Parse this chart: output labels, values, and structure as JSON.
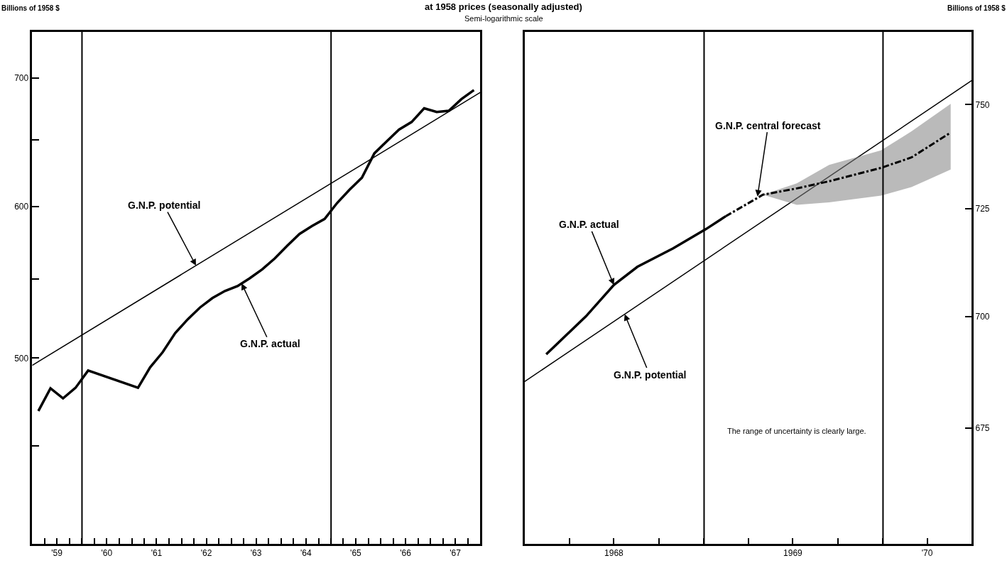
{
  "chart_data": [
    {
      "type": "line",
      "title": "at 1958 prices (seasonally adjusted)",
      "subtitle": "Semi-logarithmic scale",
      "ylabel": "Billions of 1958 $",
      "log": "y",
      "grid": false,
      "xlim": [
        "1959-01-01",
        "1968-01-01"
      ],
      "xticks": [
        {
          "value": "1959-04-01",
          "label": null
        },
        {
          "value": "1959-07-01",
          "label": "'59"
        },
        {
          "value": "1959-10-01",
          "label": null
        },
        {
          "value": "1960-01-01",
          "label": null
        },
        {
          "value": "1960-04-01",
          "label": null
        },
        {
          "value": "1960-07-01",
          "label": "'60"
        },
        {
          "value": "1960-10-01",
          "label": null
        },
        {
          "value": "1961-01-01",
          "label": null
        },
        {
          "value": "1961-04-01",
          "label": null
        },
        {
          "value": "1961-07-01",
          "label": "'61"
        },
        {
          "value": "1961-10-01",
          "label": null
        },
        {
          "value": "1962-01-01",
          "label": null
        },
        {
          "value": "1962-04-01",
          "label": null
        },
        {
          "value": "1962-07-01",
          "label": "'62"
        },
        {
          "value": "1962-10-01",
          "label": null
        },
        {
          "value": "1963-01-01",
          "label": null
        },
        {
          "value": "1963-04-01",
          "label": null
        },
        {
          "value": "1963-07-01",
          "label": "'63"
        },
        {
          "value": "1963-10-01",
          "label": null
        },
        {
          "value": "1964-01-01",
          "label": null
        },
        {
          "value": "1964-04-01",
          "label": null
        },
        {
          "value": "1964-07-01",
          "label": "'64"
        },
        {
          "value": "1964-10-01",
          "label": null
        },
        {
          "value": "1965-01-01",
          "label": null
        },
        {
          "value": "1965-04-01",
          "label": null
        },
        {
          "value": "1965-07-01",
          "label": "'65"
        },
        {
          "value": "1965-10-01",
          "label": null
        },
        {
          "value": "1966-01-01",
          "label": null
        },
        {
          "value": "1966-04-01",
          "label": null
        },
        {
          "value": "1966-07-01",
          "label": "'66"
        },
        {
          "value": "1966-10-01",
          "label": null
        },
        {
          "value": "1967-01-01",
          "label": null
        },
        {
          "value": "1967-04-01",
          "label": null
        },
        {
          "value": "1967-07-01",
          "label": "'67"
        },
        {
          "value": "1967-10-01",
          "label": null
        }
      ],
      "ylim": [
        400,
        740
      ],
      "yticks": [
        {
          "value": 450,
          "label": null
        },
        500,
        {
          "value": 550,
          "label": null
        },
        600,
        {
          "value": 650,
          "label": null
        },
        700
      ],
      "ref_lines": [
        {
          "axis": "x",
          "value": "1960-01-01",
          "color": "#000000"
        },
        {
          "axis": "x",
          "value": "1965-01-01",
          "color": "#000000"
        }
      ],
      "series": [
        {
          "color": "#000000",
          "line_style": "solid",
          "x": [
            "1959-01-01",
            "1968-01-01"
          ],
          "values": [
            495.7,
            688
          ]
        },
        {
          "color": "#000000",
          "line_style": "solid",
          "x": [
            "1959-02-15",
            "1959-05-15",
            "1959-08-15",
            "1959-11-15",
            "1960-02-15",
            "1961-02-15",
            "1961-05-15",
            "1961-08-15",
            "1961-11-15",
            "1962-02-15",
            "1962-05-15",
            "1962-08-15",
            "1962-11-15",
            "1963-02-15",
            "1963-05-15",
            "1963-08-15",
            "1963-11-15",
            "1964-02-15",
            "1964-05-15",
            "1964-08-15",
            "1964-11-15",
            "1965-02-15",
            "1965-05-15",
            "1965-08-15",
            "1965-11-15",
            "1966-02-15",
            "1966-05-15",
            "1966-08-15",
            "1966-11-15",
            "1967-02-15",
            "1967-05-15",
            "1967-08-15",
            "1967-11-15"
          ],
          "values": [
            469.2,
            482.2,
            476.4,
            482.5,
            492.6,
            482.5,
            494.5,
            503.6,
            515.3,
            523.9,
            531.3,
            537.4,
            542,
            545.2,
            550.3,
            556.3,
            563.6,
            572.3,
            580.5,
            586,
            591,
            602.5,
            612,
            621,
            639.5,
            649,
            658,
            664,
            675,
            672,
            673,
            682.5,
            690
          ]
        }
      ],
      "annotations": [
        {
          "text": "G.N.P. potential",
          "x": "1962-04-16",
          "y": 558.8
        },
        {
          "text": "G.N.P. actual",
          "x": "1963-03-17",
          "y": 546.9
        }
      ]
    },
    {
      "type": "line",
      "ylabel": "Billions of 1958 $",
      "log": "y",
      "grid": false,
      "xlim": [
        "1968-01-01",
        "1970-07-01"
      ],
      "xticks": [
        {
          "value": "1968-04-01",
          "label": null
        },
        {
          "value": "1968-07-01",
          "label": "1968"
        },
        {
          "value": "1968-10-01",
          "label": null
        },
        {
          "value": "1969-01-01",
          "label": null
        },
        {
          "value": "1969-04-01",
          "label": null
        },
        {
          "value": "1969-07-01",
          "label": "1969"
        },
        {
          "value": "1969-10-01",
          "label": null
        },
        {
          "value": "1970-01-01",
          "label": null
        },
        {
          "value": "1970-04-01",
          "label": "'70"
        }
      ],
      "ylim": [
        650,
        768
      ],
      "yticks": [
        675,
        700,
        725,
        750
      ],
      "ref_lines": [
        {
          "axis": "x",
          "value": "1969-01-01",
          "color": "#000000"
        },
        {
          "axis": "x",
          "value": "1970-01-01",
          "color": "#000000"
        }
      ],
      "series": [
        {
          "color": "#000000",
          "line_style": "solid",
          "x": [
            "1968-01-01",
            "1970-07-01"
          ],
          "values": [
            685.3,
            755.9
          ]
        },
        {
          "color": "#000000",
          "line_style": "solid",
          "x": [
            "1968-02-14",
            "1968-05-05",
            "1968-07-01",
            "1968-08-18",
            "1968-10-30",
            "1969-01-05",
            "1969-02-14"
          ],
          "values": [
            691.4,
            700,
            707.2,
            711.4,
            715.7,
            720.2,
            723.2
          ]
        },
        {
          "color": "#000000",
          "line_style": "dashed",
          "x": [
            "1969-02-14",
            "1969-05-01",
            "1969-07-09",
            "1969-09-13",
            "1969-12-28",
            "1970-02-28",
            "1970-05-19"
          ],
          "values": [
            723.2,
            728.3,
            729.8,
            731.5,
            734.7,
            737.2,
            743.2
          ],
          "lower": [
            null,
            728.3,
            725.9,
            726.5,
            728.1,
            730.1,
            734.3
          ],
          "upper": [
            null,
            728.3,
            731,
            735.4,
            738.9,
            743.5,
            750.2
          ]
        }
      ],
      "annotations": [
        {
          "text": "G.N.P. actual",
          "x": "1968-07-01",
          "y": 707.2
        },
        {
          "text": "G.N.P. potential",
          "x": "1968-07-23",
          "y": 700.5
        },
        {
          "text": "G.N.P. central forecast",
          "x": "1969-04-20",
          "y": 727.9
        },
        "The range of uncertainty is clearly large."
      ]
    }
  ]
}
